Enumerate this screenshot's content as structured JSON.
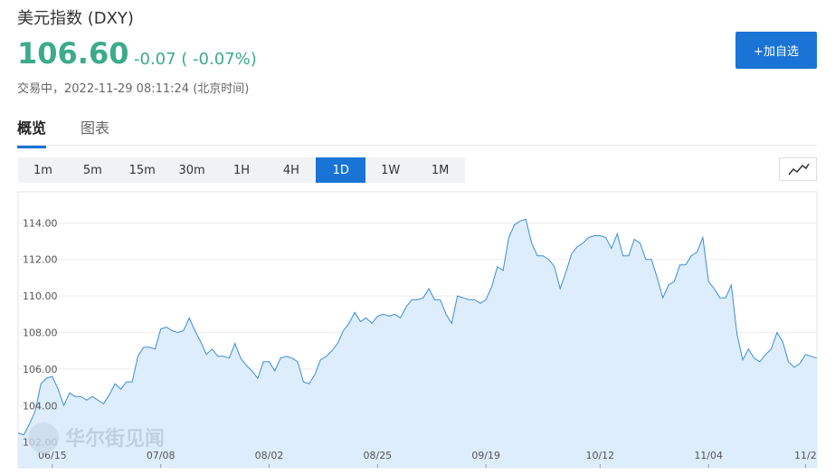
{
  "header": {
    "title": "美元指数 (DXY)",
    "price": "106.60",
    "change": "-0.07 ( -0.07%)",
    "status": "交易中，2022-11-29 08:11:24 (北京时间)",
    "button": "+加自选"
  },
  "tabs": [
    "概览",
    "图表"
  ],
  "active_tab": 0,
  "periods": [
    "1m",
    "5m",
    "15m",
    "30m",
    "1H",
    "4H",
    "1D",
    "1W",
    "1M"
  ],
  "active_period": 6,
  "chart_data": {
    "type": "area",
    "watermark": "华尔街见闻",
    "color": "#3b8ed8",
    "fill_color": "#deedfb",
    "grid": true,
    "ylim": [
      100.6,
      115.7
    ],
    "yticks": [
      {
        "value": 102,
        "label": "102.00"
      },
      {
        "value": 104,
        "label": "104.00"
      },
      {
        "value": 106,
        "label": "106.00"
      },
      {
        "value": 108,
        "label": "108.00"
      },
      {
        "value": 110,
        "label": "110.00"
      },
      {
        "value": 112,
        "label": "112.00"
      },
      {
        "value": 114,
        "label": "114.00"
      }
    ],
    "categories": [
      null,
      null,
      null,
      null,
      null,
      null,
      "06/15",
      null,
      null,
      null,
      null,
      null,
      null,
      null,
      null,
      null,
      null,
      null,
      null,
      null,
      null,
      null,
      null,
      null,
      null,
      "07/08",
      null,
      null,
      null,
      null,
      null,
      null,
      null,
      null,
      null,
      null,
      null,
      null,
      null,
      null,
      null,
      null,
      null,
      null,
      "08/02",
      null,
      null,
      null,
      null,
      null,
      null,
      null,
      null,
      null,
      null,
      null,
      null,
      null,
      null,
      null,
      null,
      null,
      null,
      "08/25",
      null,
      null,
      null,
      null,
      null,
      null,
      null,
      null,
      null,
      null,
      null,
      null,
      null,
      null,
      null,
      null,
      null,
      null,
      "09/19",
      null,
      null,
      null,
      null,
      null,
      null,
      null,
      null,
      null,
      null,
      null,
      null,
      null,
      null,
      null,
      null,
      null,
      null,
      null,
      "10/12",
      null,
      null,
      null,
      null,
      null,
      null,
      null,
      null,
      null,
      null,
      null,
      null,
      null,
      null,
      null,
      null,
      null,
      null,
      "11/04",
      null,
      null,
      null,
      null,
      null,
      null,
      null,
      null,
      null,
      null,
      null,
      null,
      null,
      null,
      null,
      null,
      "11/2",
      null,
      null
    ],
    "values": [
      102.5,
      102.4,
      103.0,
      103.7,
      105.2,
      105.5,
      105.6,
      104.9,
      104.0,
      104.7,
      104.5,
      104.5,
      104.3,
      104.5,
      104.3,
      104.1,
      104.6,
      105.2,
      104.9,
      105.3,
      105.3,
      106.7,
      107.2,
      107.2,
      107.1,
      108.2,
      108.3,
      108.1,
      108.0,
      108.1,
      108.8,
      108.1,
      107.5,
      106.8,
      107.1,
      106.7,
      106.7,
      106.6,
      107.4,
      106.6,
      106.2,
      105.9,
      105.5,
      106.4,
      106.4,
      105.9,
      106.6,
      106.7,
      106.6,
      106.4,
      105.3,
      105.2,
      105.7,
      106.5,
      106.7,
      107.0,
      107.4,
      108.1,
      108.5,
      109.1,
      108.6,
      108.8,
      108.5,
      108.9,
      109.0,
      108.9,
      109.0,
      108.8,
      109.4,
      109.8,
      109.8,
      109.9,
      110.4,
      109.8,
      109.8,
      109.0,
      108.5,
      110.0,
      109.9,
      109.8,
      109.8,
      109.6,
      109.8,
      110.5,
      111.6,
      111.4,
      113.2,
      113.9,
      114.1,
      114.2,
      112.9,
      112.2,
      112.2,
      112.0,
      111.6,
      110.4,
      111.3,
      112.3,
      112.7,
      112.9,
      113.2,
      113.3,
      113.3,
      113.2,
      112.6,
      113.4,
      112.2,
      112.2,
      113.1,
      112.9,
      112.0,
      112.0,
      111.0,
      109.9,
      110.6,
      110.8,
      111.7,
      111.7,
      112.2,
      112.4,
      113.2,
      110.8,
      110.4,
      109.9,
      109.9,
      110.6,
      107.9,
      106.5,
      107.1,
      106.6,
      106.4,
      106.8,
      107.1,
      108.0,
      107.5,
      106.4,
      106.1,
      106.3,
      106.8,
      106.7,
      106.6
    ]
  }
}
